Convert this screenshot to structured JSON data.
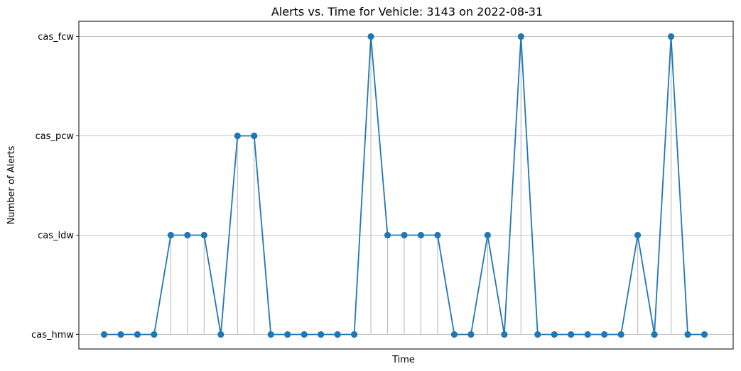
{
  "chart_data": {
    "type": "line",
    "title": "Alerts vs. Time for Vehicle: 3143 on 2022-08-31",
    "xlabel": "Time",
    "ylabel": "Number of Alerts",
    "y_categories": [
      "cas_hmw",
      "cas_ldw",
      "cas_pcw",
      "cas_fcw"
    ],
    "grid": "y",
    "x_tick_labels": "none",
    "series": [
      {
        "values": [
          "cas_hmw",
          "cas_hmw",
          "cas_hmw",
          "cas_hmw",
          "cas_ldw",
          "cas_ldw",
          "cas_ldw",
          "cas_hmw",
          "cas_pcw",
          "cas_pcw",
          "cas_hmw",
          "cas_hmw",
          "cas_hmw",
          "cas_hmw",
          "cas_hmw",
          "cas_hmw",
          "cas_fcw",
          "cas_ldw",
          "cas_ldw",
          "cas_ldw",
          "cas_ldw",
          "cas_hmw",
          "cas_hmw",
          "cas_ldw",
          "cas_hmw",
          "cas_fcw",
          "cas_hmw",
          "cas_hmw",
          "cas_hmw",
          "cas_hmw",
          "cas_hmw",
          "cas_hmw",
          "cas_ldw",
          "cas_hmw",
          "cas_fcw",
          "cas_hmw",
          "cas_hmw"
        ],
        "color": "#1f77b4",
        "marker": "circle",
        "stems": true,
        "stem_color": "#bbbbbb"
      }
    ]
  }
}
